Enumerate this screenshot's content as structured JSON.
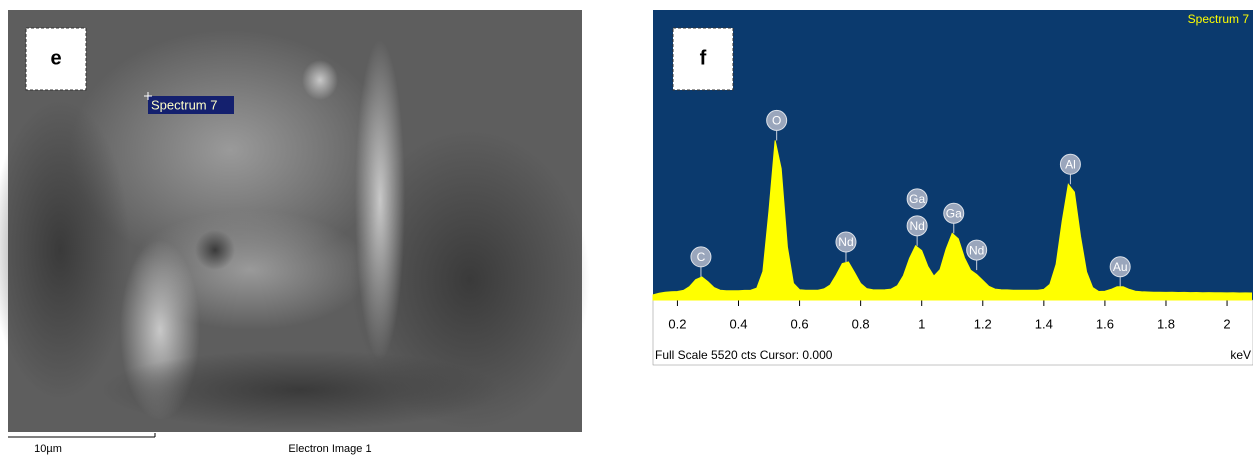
{
  "image_panel": {
    "label": "e",
    "marker": "Spectrum 7",
    "scale_bar": "10µm",
    "caption": "Electron Image 1"
  },
  "chart_data": {
    "type": "area",
    "title": "Spectrum 7",
    "panel_label": "f",
    "footer": "Full Scale 5520 cts Cursor: 0.000",
    "xlabel": "keV",
    "color": "#ffff00",
    "background": "#0b3a6e",
    "xlim": [
      0.12,
      2.085
    ],
    "xticks": [
      0.2,
      0.4,
      0.6,
      0.8,
      1,
      1.2,
      1.4,
      1.6,
      1.8,
      2
    ],
    "ylim": [
      0,
      5520
    ],
    "x": [
      0.12,
      0.14,
      0.16,
      0.18,
      0.2,
      0.22,
      0.24,
      0.26,
      0.28,
      0.3,
      0.32,
      0.34,
      0.36,
      0.38,
      0.4,
      0.42,
      0.44,
      0.46,
      0.48,
      0.5,
      0.52,
      0.54,
      0.56,
      0.58,
      0.6,
      0.62,
      0.64,
      0.66,
      0.68,
      0.7,
      0.72,
      0.74,
      0.76,
      0.78,
      0.8,
      0.82,
      0.84,
      0.86,
      0.88,
      0.9,
      0.92,
      0.94,
      0.96,
      0.98,
      1,
      1.02,
      1.04,
      1.06,
      1.08,
      1.1,
      1.12,
      1.14,
      1.16,
      1.18,
      1.2,
      1.22,
      1.24,
      1.26,
      1.28,
      1.3,
      1.32,
      1.34,
      1.36,
      1.38,
      1.4,
      1.42,
      1.44,
      1.46,
      1.48,
      1.5,
      1.52,
      1.54,
      1.56,
      1.58,
      1.6,
      1.62,
      1.64,
      1.66,
      1.68,
      1.7,
      1.72,
      1.74,
      1.76,
      1.78,
      1.8,
      1.82,
      1.84,
      1.86,
      1.88,
      1.9,
      1.92,
      1.94,
      1.96,
      1.98,
      2,
      2.02,
      2.04,
      2.06,
      2.08
    ],
    "values": [
      60,
      90,
      110,
      120,
      125,
      146,
      220,
      350,
      405,
      310,
      200,
      150,
      140,
      140,
      140,
      145,
      150,
      190,
      510,
      1680,
      3020,
      2480,
      980,
      280,
      160,
      150,
      150,
      150,
      175,
      250,
      440,
      660,
      690,
      490,
      280,
      180,
      160,
      155,
      160,
      170,
      235,
      430,
      760,
      1000,
      910,
      610,
      420,
      545,
      940,
      1240,
      1135,
      770,
      535,
      450,
      340,
      225,
      170,
      160,
      155,
      150,
      150,
      150,
      150,
      150,
      165,
      265,
      645,
      1475,
      2180,
      2030,
      1185,
      500,
      200,
      125,
      130,
      165,
      215,
      215,
      165,
      130,
      120,
      115,
      110,
      112,
      108,
      110,
      105,
      108,
      104,
      106,
      102,
      104,
      100,
      102,
      98,
      100,
      96,
      98,
      95
    ],
    "peak_labels": [
      {
        "x": 0.277,
        "labels": [
          "C"
        ]
      },
      {
        "x": 0.525,
        "labels": [
          "O"
        ]
      },
      {
        "x": 0.752,
        "labels": [
          "Nd"
        ]
      },
      {
        "x": 0.985,
        "labels": [
          "Ga",
          "Nd"
        ]
      },
      {
        "x": 1.105,
        "labels": [
          "Ga"
        ]
      },
      {
        "x": 1.18,
        "labels": [
          "Nd"
        ]
      },
      {
        "x": 1.487,
        "labels": [
          "Al"
        ]
      },
      {
        "x": 1.65,
        "labels": [
          "Au"
        ]
      }
    ]
  }
}
